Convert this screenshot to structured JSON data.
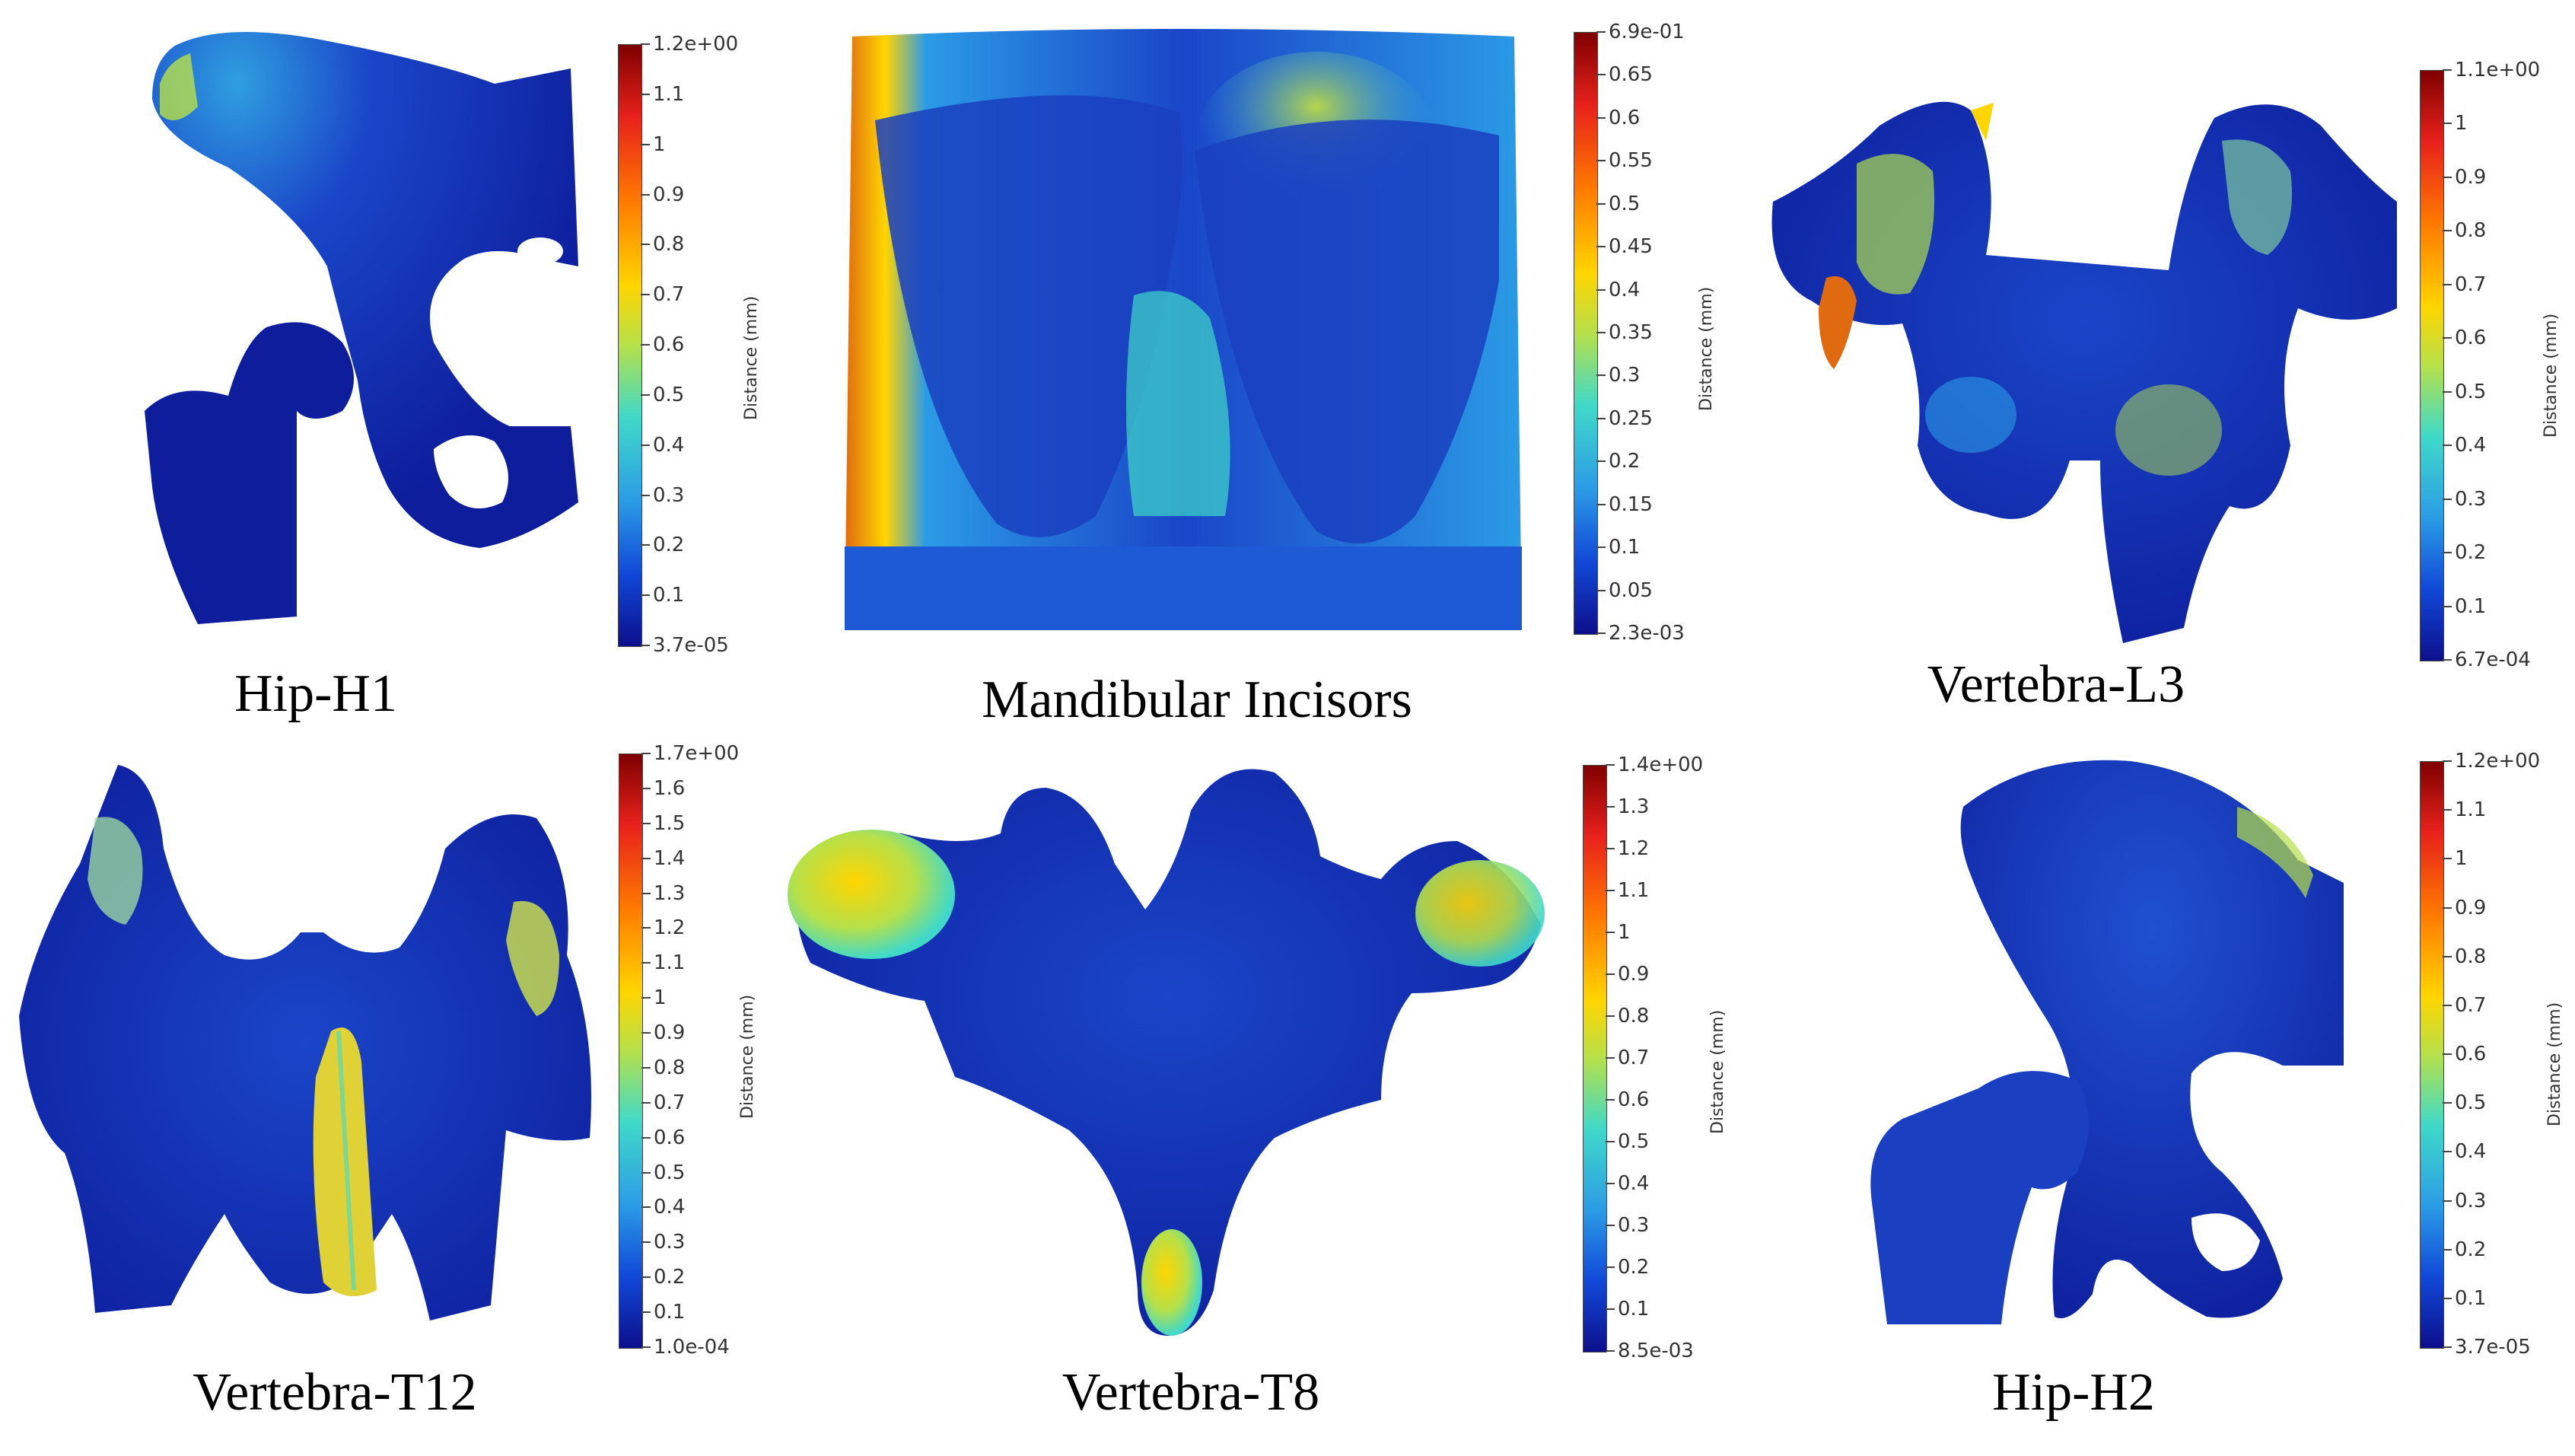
{
  "panels": [
    {
      "caption": "Hip-H1",
      "colorbar": {
        "title": "Distance (mm)",
        "labels": [
          "1.2e+00",
          "1.1",
          "1",
          "0.9",
          "0.8",
          "0.7",
          "0.6",
          "0.5",
          "0.4",
          "0.3",
          "0.2",
          "0.1",
          "3.7e-05"
        ]
      }
    },
    {
      "caption": "Mandibular Incisors",
      "colorbar": {
        "title": "Distance (mm)",
        "labels": [
          "6.9e-01",
          "0.65",
          "0.6",
          "0.55",
          "0.5",
          "0.45",
          "0.4",
          "0.35",
          "0.3",
          "0.25",
          "0.2",
          "0.15",
          "0.1",
          "0.05",
          "2.3e-03"
        ]
      }
    },
    {
      "caption": "Vertebra-L3",
      "colorbar": {
        "title": "Distance (mm)",
        "labels": [
          "1.1e+00",
          "1",
          "0.9",
          "0.8",
          "0.7",
          "0.6",
          "0.5",
          "0.4",
          "0.3",
          "0.2",
          "0.1",
          "6.7e-04"
        ]
      }
    },
    {
      "caption": "Vertebra-T12",
      "colorbar": {
        "title": "Distance (mm)",
        "labels": [
          "1.7e+00",
          "1.6",
          "1.5",
          "1.4",
          "1.3",
          "1.2",
          "1.1",
          "1",
          "0.9",
          "0.8",
          "0.7",
          "0.6",
          "0.5",
          "0.4",
          "0.3",
          "0.2",
          "0.1",
          "1.0e-04"
        ]
      }
    },
    {
      "caption": "Vertebra-T8",
      "colorbar": {
        "title": "Distance (mm)",
        "labels": [
          "1.4e+00",
          "1.3",
          "1.2",
          "1.1",
          "1",
          "0.9",
          "0.8",
          "0.7",
          "0.6",
          "0.5",
          "0.4",
          "0.3",
          "0.2",
          "0.1",
          "8.5e-03"
        ]
      }
    },
    {
      "caption": "Hip-H2",
      "colorbar": {
        "title": "Distance (mm)",
        "labels": [
          "1.2e+00",
          "1.1",
          "1",
          "0.9",
          "0.8",
          "0.7",
          "0.6",
          "0.5",
          "0.4",
          "0.3",
          "0.2",
          "0.1",
          "3.7e-05"
        ]
      }
    }
  ],
  "colors": {
    "low": "#0d1d9c",
    "mid": "#2d7fe0",
    "cyan": "#40d9c9",
    "high": "#f2d21e",
    "max": "#7f0000"
  }
}
